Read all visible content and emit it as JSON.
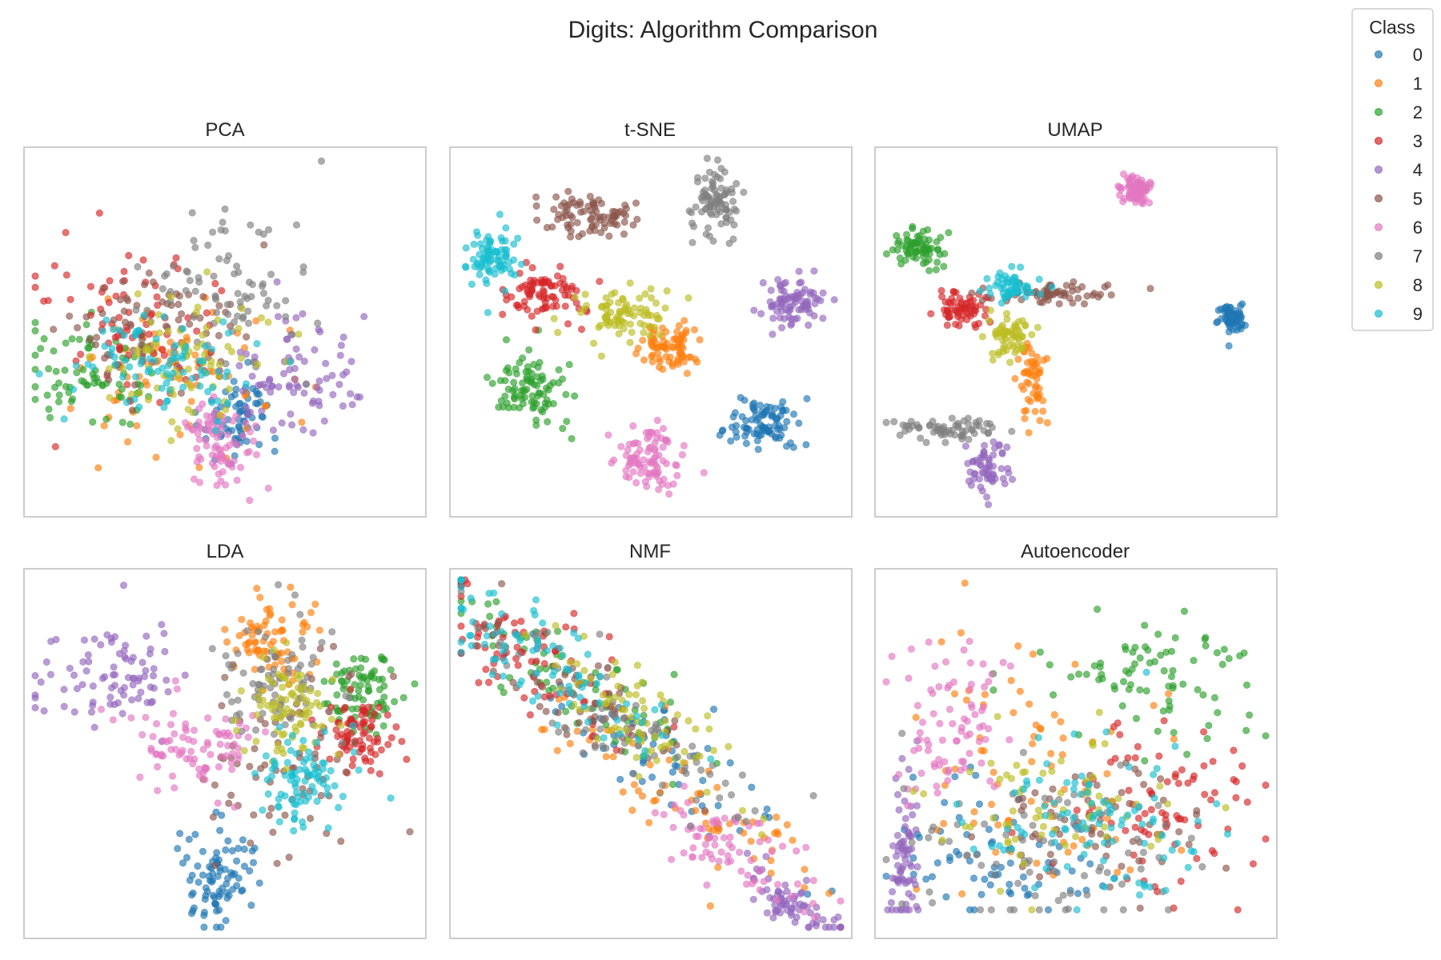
{
  "figure": {
    "title": "Digits: Algorithm Comparison"
  },
  "legend": {
    "title": "Class",
    "placement": "outside-top-right",
    "entries": [
      {
        "label": "0",
        "color": "#1f77b4"
      },
      {
        "label": "1",
        "color": "#ff7f0e"
      },
      {
        "label": "2",
        "color": "#2ca02c"
      },
      {
        "label": "3",
        "color": "#d62728"
      },
      {
        "label": "4",
        "color": "#9467bd"
      },
      {
        "label": "5",
        "color": "#8c564b"
      },
      {
        "label": "6",
        "color": "#e377c2"
      },
      {
        "label": "7",
        "color": "#7f7f7f"
      },
      {
        "label": "8",
        "color": "#bcbd22"
      },
      {
        "label": "9",
        "color": "#17becf"
      }
    ]
  },
  "chart_data": [
    {
      "type": "scatter",
      "title": "PCA",
      "grid": false,
      "xlim": [
        0,
        100
      ],
      "ylim": [
        0,
        100
      ],
      "clusters": [
        {
          "class": "0",
          "cx": 53,
          "cy": 24,
          "sx": 5,
          "sy": 7,
          "n": 70
        },
        {
          "class": "1",
          "cx": 40,
          "cy": 36,
          "sx": 13,
          "sy": 12,
          "n": 75
        },
        {
          "class": "2",
          "cx": 15,
          "cy": 37,
          "sx": 9,
          "sy": 7,
          "n": 75
        },
        {
          "class": "3",
          "cx": 27,
          "cy": 50,
          "sx": 11,
          "sy": 11,
          "n": 80
        },
        {
          "class": "4",
          "cx": 67,
          "cy": 38,
          "sx": 9,
          "sy": 8,
          "n": 80
        },
        {
          "class": "5",
          "cx": 33,
          "cy": 50,
          "sx": 11,
          "sy": 9,
          "n": 75
        },
        {
          "class": "6",
          "cx": 48,
          "cy": 18,
          "sx": 5,
          "sy": 7,
          "n": 80
        },
        {
          "class": "7",
          "cx": 51,
          "cy": 64,
          "sx": 11,
          "sy": 12,
          "n": 80
        },
        {
          "class": "8",
          "cx": 38,
          "cy": 42,
          "sx": 10,
          "sy": 8,
          "n": 75
        },
        {
          "class": "9",
          "cx": 33,
          "cy": 39,
          "sx": 11,
          "sy": 7,
          "n": 85
        }
      ]
    },
    {
      "type": "scatter",
      "title": "t-SNE",
      "grid": false,
      "xlim": [
        0,
        100
      ],
      "ylim": [
        0,
        100
      ],
      "clusters": [
        {
          "class": "0",
          "cx": 80,
          "cy": 24,
          "sx": 4.5,
          "sy": 4.0,
          "n": 90
        },
        {
          "class": "1",
          "cx": 56,
          "cy": 46,
          "sx": 3.5,
          "sy": 3.5,
          "n": 80
        },
        {
          "class": "2",
          "cx": 19,
          "cy": 35,
          "sx": 5.0,
          "sy": 5.5,
          "n": 90
        },
        {
          "class": "3",
          "cx": 21,
          "cy": 61,
          "sx": 5.0,
          "sy": 4.0,
          "n": 85
        },
        {
          "class": "4",
          "cx": 87,
          "cy": 59,
          "sx": 4.0,
          "sy": 4.0,
          "n": 85
        },
        {
          "class": "5",
          "cx": 34,
          "cy": 84,
          "sx": 6.0,
          "sy": 3.0,
          "n": 85
        },
        {
          "class": "6",
          "cx": 49,
          "cy": 14,
          "sx": 4.5,
          "sy": 5.0,
          "n": 90
        },
        {
          "class": "7",
          "cx": 67,
          "cy": 87,
          "sx": 3.0,
          "sy": 6.0,
          "n": 85
        },
        {
          "class": "8",
          "cx": 43,
          "cy": 55,
          "sx": 6.0,
          "sy": 4.5,
          "n": 85
        },
        {
          "class": "9",
          "cx": 8,
          "cy": 72,
          "sx": 3.5,
          "sy": 4.0,
          "n": 80
        }
      ]
    },
    {
      "type": "scatter",
      "title": "UMAP",
      "grid": false,
      "xlim": [
        0,
        100
      ],
      "ylim": [
        0,
        100
      ],
      "clusters": [
        {
          "class": "0",
          "cx": 91,
          "cy": 54,
          "sx": 1.8,
          "sy": 2.0,
          "n": 80
        },
        {
          "class": "1",
          "cx": 39,
          "cy": 38,
          "sx": 1.8,
          "sy": 6.0,
          "n": 55
        },
        {
          "class": "2",
          "cx": 9,
          "cy": 74,
          "sx": 3.0,
          "sy": 2.5,
          "n": 70
        },
        {
          "class": "3",
          "cx": 19,
          "cy": 57,
          "sx": 3.5,
          "sy": 2.5,
          "n": 65
        },
        {
          "class": "4",
          "cx": 27,
          "cy": 11,
          "sx": 2.5,
          "sy": 4.0,
          "n": 60
        },
        {
          "class": "5",
          "cx": 43,
          "cy": 61,
          "sx": 8.0,
          "sy": 1.5,
          "n": 65
        },
        {
          "class": "6",
          "cx": 66,
          "cy": 91,
          "sx": 2.0,
          "sy": 2.0,
          "n": 80
        },
        {
          "class": "7",
          "cx": 17,
          "cy": 22,
          "sx": 8.0,
          "sy": 1.5,
          "n": 65
        },
        {
          "class": "8",
          "cx": 33,
          "cy": 48,
          "sx": 3.0,
          "sy": 3.5,
          "n": 60
        },
        {
          "class": "9",
          "cx": 33,
          "cy": 63,
          "sx": 3.5,
          "sy": 2.0,
          "n": 55
        }
      ]
    },
    {
      "type": "scatter",
      "title": "LDA",
      "grid": false,
      "xlim": [
        0,
        100
      ],
      "ylim": [
        0,
        100
      ],
      "clusters": [
        {
          "class": "0",
          "cx": 48,
          "cy": 15,
          "sx": 5.5,
          "sy": 7.0,
          "n": 85
        },
        {
          "class": "1",
          "cx": 63,
          "cy": 82,
          "sx": 6.0,
          "sy": 6.0,
          "n": 75
        },
        {
          "class": "2",
          "cx": 86,
          "cy": 68,
          "sx": 5.0,
          "sy": 6.0,
          "n": 80
        },
        {
          "class": "3",
          "cx": 84,
          "cy": 55,
          "sx": 5.0,
          "sy": 5.0,
          "n": 85
        },
        {
          "class": "4",
          "cx": 20,
          "cy": 72,
          "sx": 11.0,
          "sy": 7.0,
          "n": 85
        },
        {
          "class": "5",
          "cx": 65,
          "cy": 50,
          "sx": 10.0,
          "sy": 12.0,
          "n": 70
        },
        {
          "class": "6",
          "cx": 42,
          "cy": 53,
          "sx": 8.0,
          "sy": 7.0,
          "n": 85
        },
        {
          "class": "7",
          "cx": 63,
          "cy": 70,
          "sx": 7.0,
          "sy": 9.0,
          "n": 80
        },
        {
          "class": "8",
          "cx": 67,
          "cy": 63,
          "sx": 6.0,
          "sy": 8.0,
          "n": 80
        },
        {
          "class": "9",
          "cx": 70,
          "cy": 41,
          "sx": 6.0,
          "sy": 6.0,
          "n": 85
        }
      ]
    },
    {
      "type": "scatter",
      "title": "NMF",
      "grid": false,
      "xlim": [
        0,
        100
      ],
      "ylim": [
        0,
        100
      ],
      "clusters": [
        {
          "class": "0",
          "cx": 50,
          "cy": 50,
          "sx": 22,
          "sy": 7,
          "n": 60,
          "angle": -37
        },
        {
          "class": "1",
          "cx": 60,
          "cy": 35,
          "sx": 20,
          "sy": 7,
          "n": 70,
          "angle": -37
        },
        {
          "class": "2",
          "cx": 30,
          "cy": 70,
          "sx": 22,
          "sy": 6,
          "n": 70,
          "angle": -37
        },
        {
          "class": "3",
          "cx": 20,
          "cy": 76,
          "sx": 18,
          "sy": 7,
          "n": 80,
          "angle": -37
        },
        {
          "class": "4",
          "cx": 88,
          "cy": 7,
          "sx": 8,
          "sy": 3,
          "n": 70,
          "angle": -37
        },
        {
          "class": "5",
          "cx": 28,
          "cy": 70,
          "sx": 18,
          "sy": 6,
          "n": 60,
          "angle": -37
        },
        {
          "class": "6",
          "cx": 72,
          "cy": 22,
          "sx": 12,
          "sy": 5,
          "n": 75,
          "angle": -37
        },
        {
          "class": "7",
          "cx": 42,
          "cy": 58,
          "sx": 22,
          "sy": 6,
          "n": 75,
          "angle": -37
        },
        {
          "class": "8",
          "cx": 48,
          "cy": 58,
          "sx": 18,
          "sy": 6,
          "n": 75,
          "angle": -37
        },
        {
          "class": "9",
          "cx": 22,
          "cy": 76,
          "sx": 22,
          "sy": 6,
          "n": 85,
          "angle": -37
        }
      ]
    },
    {
      "type": "scatter",
      "title": "Autoencoder",
      "grid": false,
      "xlim": [
        0,
        100
      ],
      "ylim": [
        0,
        100
      ],
      "clusters": [
        {
          "class": "0",
          "cx": 30,
          "cy": 22,
          "sx": 14,
          "sy": 10,
          "n": 70,
          "floor": 5
        },
        {
          "class": "1",
          "cx": 38,
          "cy": 45,
          "sx": 16,
          "sy": 22,
          "n": 75,
          "floor": 5
        },
        {
          "class": "2",
          "cx": 72,
          "cy": 72,
          "sx": 14,
          "sy": 10,
          "n": 80,
          "floor": 5
        },
        {
          "class": "3",
          "cx": 72,
          "cy": 35,
          "sx": 13,
          "sy": 12,
          "n": 80,
          "floor": 5
        },
        {
          "class": "4",
          "cx": 5,
          "cy": 20,
          "sx": 2,
          "sy": 12,
          "n": 70,
          "floor": 5
        },
        {
          "class": "5",
          "cx": 55,
          "cy": 30,
          "sx": 18,
          "sy": 10,
          "n": 60,
          "floor": 5
        },
        {
          "class": "6",
          "cx": 17,
          "cy": 58,
          "sx": 7,
          "sy": 12,
          "n": 80,
          "floor": 5
        },
        {
          "class": "7",
          "cx": 40,
          "cy": 20,
          "sx": 20,
          "sy": 12,
          "n": 80,
          "floor": 5
        },
        {
          "class": "8",
          "cx": 45,
          "cy": 38,
          "sx": 17,
          "sy": 10,
          "n": 70,
          "floor": 5
        },
        {
          "class": "9",
          "cx": 55,
          "cy": 30,
          "sx": 17,
          "sy": 12,
          "n": 95,
          "floor": 5
        }
      ]
    }
  ]
}
